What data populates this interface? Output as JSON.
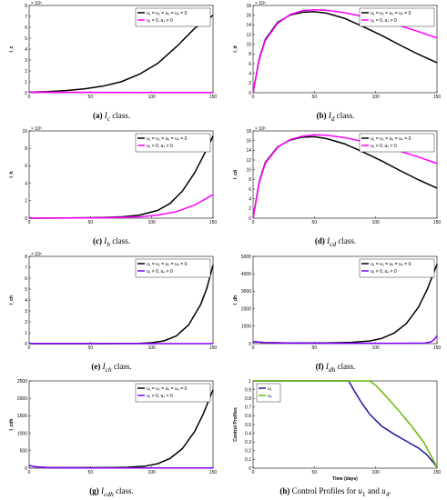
{
  "chart_data": [
    {
      "id": "a",
      "type": "line",
      "ylabel": "I_c",
      "xlabel": "",
      "exponent": "× 10⁵",
      "xlim": [
        0,
        150
      ],
      "ylim": [
        0,
        8
      ],
      "xticks": [
        "0",
        "50",
        "100",
        "150"
      ],
      "yticks": [
        "0",
        "1",
        "2",
        "3",
        "4",
        "5",
        "6",
        "7",
        "8"
      ],
      "legend_pos": "top-right",
      "series": [
        {
          "name": "u₁ = u₂ = u₃ = u₄ = 0",
          "color": "#000000",
          "x": [
            0,
            15,
            30,
            45,
            60,
            75,
            90,
            105,
            120,
            135,
            150
          ],
          "y": [
            0.05,
            0.1,
            0.2,
            0.35,
            0.6,
            1.0,
            1.7,
            2.7,
            4.2,
            5.9,
            7.1
          ]
        },
        {
          "name": "u₁ ≠ 0, u₄ ≠ 0",
          "color": "#ff00ff",
          "x": [
            0,
            30,
            60,
            90,
            120,
            150
          ],
          "y": [
            0.05,
            0.04,
            0.03,
            0.02,
            0.02,
            0.02
          ]
        }
      ],
      "caption_prefix": "(a)",
      "caption_var": "I",
      "caption_sub": "c",
      "caption_suffix": "class."
    },
    {
      "id": "b",
      "type": "line",
      "ylabel": "I_d",
      "xlabel": "",
      "exponent": "× 10⁵",
      "xlim": [
        0,
        150
      ],
      "ylim": [
        0,
        18
      ],
      "xticks": [
        "0",
        "50",
        "100",
        "150"
      ],
      "yticks": [
        "0",
        "2",
        "4",
        "6",
        "8",
        "10",
        "12",
        "14",
        "16",
        "18"
      ],
      "legend_pos": "top-right",
      "series": [
        {
          "name": "u₁ = u₂ = u₃ = u₄ = 0",
          "color": "#000000",
          "x": [
            0,
            5,
            10,
            20,
            30,
            40,
            50,
            60,
            75,
            90,
            105,
            120,
            135,
            150
          ],
          "y": [
            0,
            7,
            11,
            14.5,
            16,
            16.6,
            16.7,
            16.4,
            15.3,
            13.6,
            11.8,
            9.8,
            7.9,
            6.2
          ]
        },
        {
          "name": "u₁ ≠ 0, u₄ ≠ 0",
          "color": "#ff00ff",
          "x": [
            0,
            5,
            10,
            20,
            30,
            40,
            50,
            60,
            75,
            90,
            105,
            120,
            135,
            150
          ],
          "y": [
            0,
            6.8,
            10.8,
            14.3,
            16.1,
            16.9,
            17.1,
            17.0,
            16.5,
            15.7,
            14.8,
            13.8,
            12.6,
            11.3
          ]
        }
      ],
      "caption_prefix": "(b)",
      "caption_var": "I",
      "caption_sub": "d",
      "caption_suffix": "class."
    },
    {
      "id": "c",
      "type": "line",
      "ylabel": "I_h",
      "xlabel": "",
      "exponent": "× 10⁵",
      "xlim": [
        0,
        150
      ],
      "ylim": [
        0,
        10
      ],
      "xticks": [
        "0",
        "50",
        "100",
        "150"
      ],
      "yticks": [
        "0",
        "2",
        "4",
        "6",
        "8",
        "10"
      ],
      "legend_pos": "top-right",
      "series": [
        {
          "name": "u₁ = u₂ = u₃ = u₄ = 0",
          "color": "#000000",
          "x": [
            0,
            30,
            60,
            75,
            90,
            105,
            115,
            125,
            135,
            142,
            150
          ],
          "y": [
            0,
            0.02,
            0.08,
            0.15,
            0.35,
            0.9,
            1.7,
            3.1,
            5.2,
            7.1,
            9.4
          ]
        },
        {
          "name": "u₁ ≠ 0, u₄ ≠ 0",
          "color": "#ff00ff",
          "x": [
            0,
            30,
            60,
            90,
            105,
            120,
            135,
            150
          ],
          "y": [
            0,
            0.01,
            0.04,
            0.15,
            0.35,
            0.75,
            1.5,
            2.7
          ]
        }
      ],
      "caption_prefix": "(c)",
      "caption_var": "I",
      "caption_sub": "h",
      "caption_suffix": "class."
    },
    {
      "id": "d",
      "type": "line",
      "ylabel": "I_cd",
      "xlabel": "",
      "exponent": "× 10⁵",
      "xlim": [
        0,
        150
      ],
      "ylim": [
        0,
        18
      ],
      "xticks": [
        "0",
        "50",
        "100",
        "150"
      ],
      "yticks": [
        "0",
        "2",
        "4",
        "6",
        "8",
        "10",
        "12",
        "14",
        "16",
        "18"
      ],
      "legend_pos": "top-right",
      "series": [
        {
          "name": "u₁ = u₂ = u₃ = u₄ = 0",
          "color": "#000000",
          "x": [
            0,
            5,
            10,
            20,
            30,
            40,
            50,
            60,
            75,
            90,
            105,
            120,
            135,
            150
          ],
          "y": [
            0,
            7.5,
            11.5,
            14.7,
            16.1,
            16.7,
            16.8,
            16.4,
            15.3,
            13.6,
            11.8,
            9.8,
            7.9,
            6.2
          ]
        },
        {
          "name": "u₁ ≠ 0, u₄ ≠ 0",
          "color": "#ff00ff",
          "x": [
            0,
            5,
            10,
            20,
            30,
            40,
            50,
            60,
            75,
            90,
            105,
            120,
            135,
            150
          ],
          "y": [
            0,
            7.3,
            11.3,
            14.6,
            16.2,
            16.9,
            17.2,
            17.1,
            16.6,
            15.8,
            14.9,
            13.8,
            12.6,
            11.3
          ]
        }
      ],
      "caption_prefix": "(d)",
      "caption_var": "I",
      "caption_sub": "cd",
      "caption_suffix": "class."
    },
    {
      "id": "e",
      "type": "line",
      "ylabel": "I_ch",
      "xlabel": "",
      "exponent": "× 10⁵",
      "xlim": [
        0,
        150
      ],
      "ylim": [
        0,
        8
      ],
      "xticks": [
        "0",
        "50",
        "100",
        "150"
      ],
      "yticks": [
        "0",
        "1",
        "2",
        "3",
        "4",
        "5",
        "6",
        "7",
        "8"
      ],
      "legend_pos": "top-right",
      "series": [
        {
          "name": "u₁ = u₂ = u₃ = u₄ = 0",
          "color": "#000000",
          "x": [
            0,
            60,
            90,
            100,
            110,
            120,
            130,
            140,
            145,
            150
          ],
          "y": [
            0,
            0,
            0.02,
            0.08,
            0.25,
            0.7,
            1.7,
            3.6,
            5.1,
            7.2
          ]
        },
        {
          "name": "u₁ ≠ 0, u₄ ≠ 0",
          "color": "#8000ff",
          "x": [
            0,
            50,
            100,
            150
          ],
          "y": [
            0,
            0,
            0,
            0
          ]
        }
      ],
      "caption_prefix": "(e)",
      "caption_var": "I",
      "caption_sub": "ch",
      "caption_suffix": "class."
    },
    {
      "id": "f",
      "type": "line",
      "ylabel": "I_dh",
      "xlabel": "",
      "exponent": "",
      "xlim": [
        0,
        150
      ],
      "ylim": [
        0,
        5000
      ],
      "xticks": [
        "0",
        "50",
        "100",
        "150"
      ],
      "yticks": [
        "0",
        "1000",
        "2000",
        "3000",
        "4000",
        "5000"
      ],
      "legend_pos": "top-right",
      "series": [
        {
          "name": "u₁ = u₂ = u₃ = u₄ = 0",
          "color": "#000000",
          "x": [
            0,
            10,
            30,
            60,
            80,
            95,
            105,
            115,
            125,
            135,
            142,
            150
          ],
          "y": [
            120,
            60,
            40,
            40,
            70,
            150,
            300,
            600,
            1150,
            2100,
            3100,
            4550
          ]
        },
        {
          "name": "u₁ ≠ 0, u₄ ≠ 0",
          "color": "#8000ff",
          "x": [
            0,
            10,
            30,
            60,
            90,
            120,
            140,
            145,
            148,
            150
          ],
          "y": [
            120,
            60,
            30,
            20,
            20,
            20,
            30,
            100,
            250,
            450
          ]
        }
      ],
      "caption_prefix": "(f)",
      "caption_var": "I",
      "caption_sub": "dh",
      "caption_suffix": "class."
    },
    {
      "id": "g",
      "type": "line",
      "ylabel": "I_cdh",
      "xlabel": "",
      "exponent": "",
      "xlim": [
        0,
        150
      ],
      "ylim": [
        0,
        2500
      ],
      "xticks": [
        "0",
        "50",
        "100",
        "150"
      ],
      "yticks": [
        "0",
        "500",
        "1000",
        "1500",
        "2000",
        "2500"
      ],
      "legend_pos": "top-right",
      "series": [
        {
          "name": "u₁ = u₂ = u₃ = u₄ = 0",
          "color": "#000000",
          "x": [
            0,
            5,
            15,
            30,
            60,
            80,
            95,
            105,
            115,
            125,
            135,
            142,
            150
          ],
          "y": [
            80,
            40,
            20,
            15,
            15,
            25,
            60,
            130,
            280,
            560,
            1050,
            1550,
            2250
          ]
        },
        {
          "name": "u₁ ≠ 0, u₄ ≠ 0",
          "color": "#8000ff",
          "x": [
            0,
            5,
            15,
            30,
            60,
            90,
            120,
            150
          ],
          "y": [
            80,
            40,
            15,
            10,
            8,
            8,
            8,
            8
          ]
        }
      ],
      "caption_prefix": "(g)",
      "caption_var": "I",
      "caption_sub": "cdh",
      "caption_suffix": "class."
    },
    {
      "id": "h",
      "type": "line",
      "ylabel": "Control Profiles",
      "xlabel": "Time (days)",
      "exponent": "",
      "xlim": [
        0,
        150
      ],
      "ylim": [
        0,
        1
      ],
      "xticks": [
        "0",
        "50",
        "100",
        "150"
      ],
      "yticks": [
        "0",
        "0.1",
        "0.2",
        "0.3",
        "0.4",
        "0.5",
        "0.6",
        "0.7",
        "0.8",
        "0.9",
        "1"
      ],
      "legend_pos": "top-left",
      "series": [
        {
          "name": "u₁",
          "color": "#1a1aa0",
          "x": [
            0,
            78,
            82,
            88,
            95,
            105,
            115,
            125,
            135,
            142,
            148,
            150
          ],
          "y": [
            1,
            1,
            0.9,
            0.76,
            0.62,
            0.48,
            0.39,
            0.31,
            0.23,
            0.15,
            0.05,
            0.01
          ]
        },
        {
          "name": "u₄",
          "color": "#66bb00",
          "x": [
            0,
            95,
            100,
            110,
            120,
            130,
            140,
            146,
            150
          ],
          "y": [
            1,
            1,
            0.95,
            0.8,
            0.64,
            0.47,
            0.28,
            0.12,
            0.01
          ]
        }
      ],
      "caption_prefix": "(h)",
      "caption_text": "Control Profiles for",
      "caption_var1": "u",
      "caption_sub1": "1",
      "caption_and": "and",
      "caption_var2": "u",
      "caption_sub2": "4",
      "caption_end": "."
    }
  ]
}
